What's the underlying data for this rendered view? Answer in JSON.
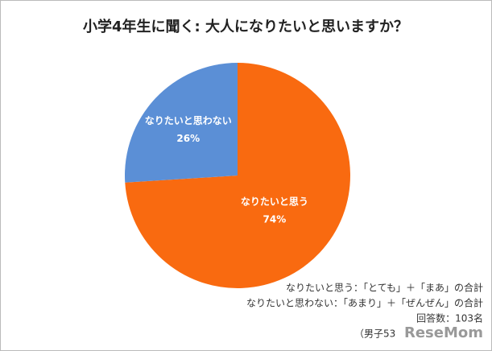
{
  "chart_data": {
    "type": "pie",
    "title": "小学4年生に聞く: 大人になりたいと思いますか？",
    "categories": [
      "なりたいと思う",
      "なりたいと思わない"
    ],
    "values": [
      74,
      26
    ],
    "value_labels": [
      "74%",
      "26%"
    ],
    "colors": [
      "#f96a10",
      "#5b8fd6"
    ],
    "notes": [
      "なりたいと思う：「とても」＋「まあ」の合計",
      "なりたいと思わない：「あまり」＋「ぜんぜん」の合計",
      "回答数：103名",
      "（男子53"
    ],
    "watermark": "ReseMom"
  }
}
